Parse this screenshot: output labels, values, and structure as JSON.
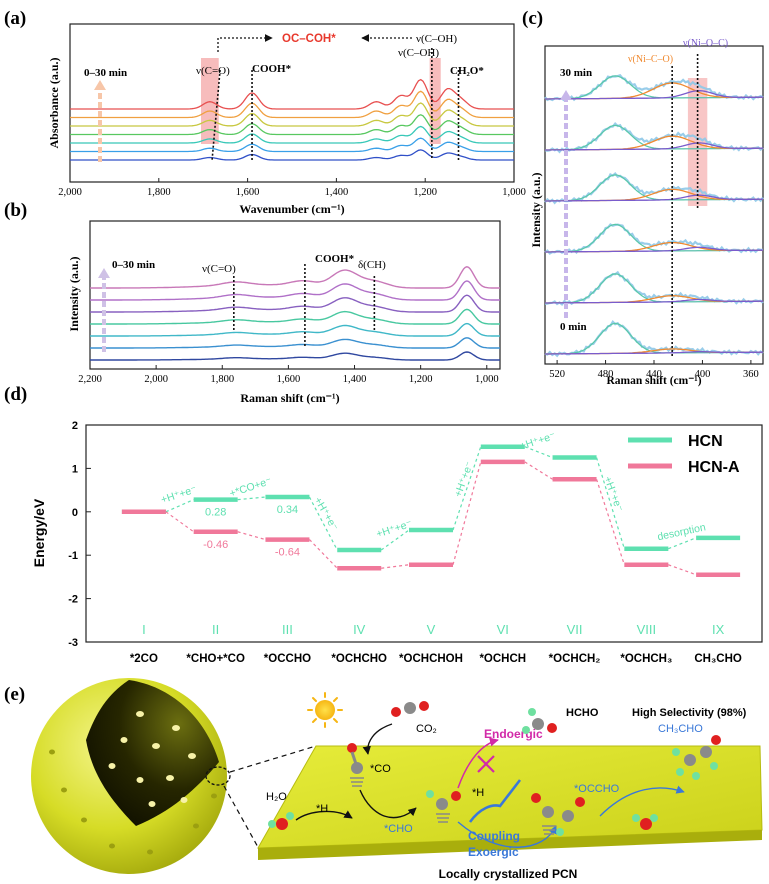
{
  "panel_labels": {
    "a": "(a)",
    "b": "(b)",
    "c": "(c)",
    "d": "(d)",
    "e": "(e)"
  },
  "colors": {
    "hcn": "#5ee0b0",
    "hcna": "#f0789a",
    "highlight": "#f3a0a0",
    "orange_fit": "#f08a30",
    "purple_fit": "#7a5ccc",
    "title_red": "#e8382c",
    "sphere": "#d8e030",
    "slab": "#d6dc20",
    "blue_text": "#3a78d8",
    "magenta": "#d22aa8"
  },
  "chart_data": [
    {
      "type": "line",
      "id": "a",
      "xlabel": "Wavenumber (cm⁻¹)",
      "ylabel": "Absorbance (a.u.)",
      "xlim": [
        2000,
        1000
      ],
      "xticks": [
        "2,000",
        "1,800",
        "1,600",
        "1,400",
        "1,200",
        "1,000"
      ],
      "time_label": "0–30 min",
      "header": "OC–COH*",
      "header_right": "ν(C–OH)",
      "annotations": [
        "ν(C=O)",
        "COOH*",
        "ν(C–OH)",
        "CH₂O*"
      ],
      "series_count": 7,
      "peaks": [
        {
          "x": 1685,
          "h": 0.25
        },
        {
          "x": 1590,
          "h": 0.55
        },
        {
          "x": 1310,
          "h": 0.25
        },
        {
          "x": 1255,
          "h": 0.45
        },
        {
          "x": 1210,
          "h": 1.0
        },
        {
          "x": 1150,
          "h": 0.65
        },
        {
          "x": 1120,
          "h": 0.3
        }
      ],
      "highlight_bands": [
        [
          1705,
          1665
        ],
        [
          1190,
          1165
        ]
      ],
      "marker_lines": [
        1680,
        1590,
        1185,
        1125
      ]
    },
    {
      "type": "line",
      "id": "b",
      "xlabel": "Raman shift (cm⁻¹)",
      "ylabel": "Intensity (a.u.)",
      "xlim": [
        2200,
        960
      ],
      "xticks": [
        "2,200",
        "2,000",
        "1,800",
        "1,600",
        "1,400",
        "1,200",
        "1,000"
      ],
      "time_label": "0–30 min",
      "annotations": [
        "ν(C=O)",
        "COOH*",
        "δ(CH)"
      ],
      "series_count": 7,
      "peaks": [
        {
          "x": 1760,
          "h": 0.15
        },
        {
          "x": 1555,
          "h": 0.25
        },
        {
          "x": 1430,
          "h": 0.8
        },
        {
          "x": 1340,
          "h": 0.3
        },
        {
          "x": 1060,
          "h": 1.0
        }
      ],
      "marker_lines": [
        1765,
        1550,
        1340
      ]
    },
    {
      "type": "line",
      "id": "c",
      "xlabel": "Raman shift (cm⁻¹)",
      "ylabel": "Intensity (a.u.)",
      "xlim": [
        530,
        350
      ],
      "xticks": [
        "520",
        "480",
        "440",
        "400",
        "360"
      ],
      "xtick_values": [
        520,
        480,
        440,
        400,
        360
      ],
      "top_label": "30 min",
      "bottom_label": "0 min",
      "annotations": [
        "ν(Ni–C–O)",
        "ν(Ni–O–C)"
      ],
      "spectra_count": 6,
      "fits": [
        {
          "name": "main",
          "center": 472,
          "width": 18
        },
        {
          "name": "ni_c_o",
          "center": 425,
          "width": 18
        },
        {
          "name": "ni_o_c",
          "center": 403,
          "width": 14
        }
      ],
      "highlight_band": [
        412,
        396
      ],
      "marker_lines": [
        425,
        404
      ]
    },
    {
      "type": "line",
      "id": "d",
      "ylabel": "Energy/eV",
      "ylim": [
        -3,
        2
      ],
      "yticks": [
        "2",
        "1",
        "0",
        "-1",
        "-2",
        "-3"
      ],
      "roman": [
        "I",
        "II",
        "III",
        "IV",
        "V",
        "VI",
        "VII",
        "VIII",
        "IX"
      ],
      "categories": [
        "*2CO",
        "*CHO+*CO",
        "*OCCHO",
        "*OCHCHO",
        "*OCHCHOH",
        "*OCHCH",
        "*OCHCH₂",
        "*OCHCH₃",
        "CH₃CHO"
      ],
      "series": [
        {
          "name": "HCN",
          "values": [
            0,
            0.28,
            0.34,
            -0.88,
            -0.42,
            1.5,
            1.25,
            -0.85,
            -0.6
          ]
        },
        {
          "name": "HCN-A",
          "values": [
            0,
            -0.46,
            -0.64,
            -1.3,
            -1.22,
            1.15,
            0.75,
            -1.22,
            -1.45
          ]
        }
      ],
      "value_labels": [
        {
          "series": "HCN",
          "index": 1,
          "text": "0.28"
        },
        {
          "series": "HCN",
          "index": 2,
          "text": "0.34"
        },
        {
          "series": "HCN-A",
          "index": 1,
          "text": "-0.46"
        },
        {
          "series": "HCN-A",
          "index": 2,
          "text": "-0.64"
        }
      ],
      "step_labels": [
        "+H⁺+e⁻",
        "+*CO+e⁻",
        "+H⁺+e⁻",
        "+H⁺+e⁻",
        "+H⁺+e⁻",
        "+H⁺+e⁻",
        "+H⁺+e⁻",
        "desorption"
      ]
    }
  ],
  "panel_e": {
    "co2": "CO₂",
    "co": "*CO",
    "h2o": "H₂O",
    "h": "*H",
    "h2": "*H",
    "cho": "*CHO",
    "endoergic": "Endoergic",
    "hcho": "HCHO",
    "occho": "*OCCHO",
    "coupling": "Coupling",
    "exoergic": "Exoergic",
    "selectivity": "High Selectivity (98%)",
    "product": "CH₃CHO",
    "substrate": "Locally crystallized PCN"
  }
}
